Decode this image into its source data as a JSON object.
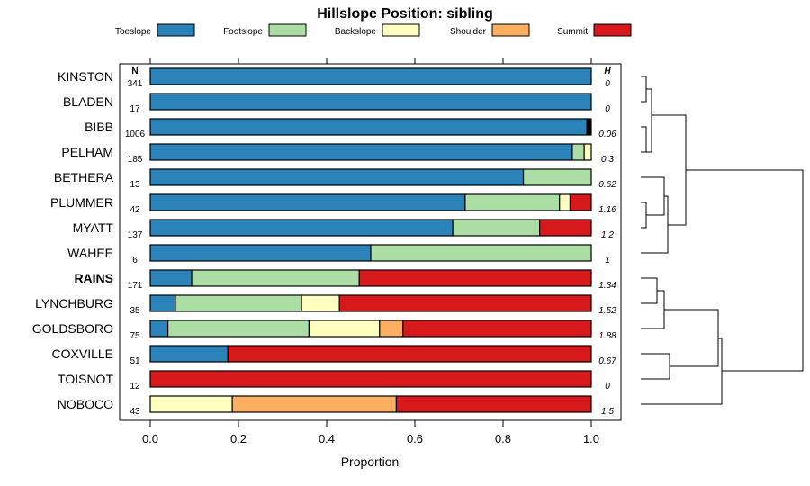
{
  "chart_data": {
    "type": "bar",
    "title": "Hillslope Position: sibling",
    "xlabel": "Proportion",
    "xlim": [
      0,
      1
    ],
    "xticks": [
      "0.0",
      "0.2",
      "0.4",
      "0.6",
      "0.8",
      "1.0"
    ],
    "n_header": "N",
    "h_header": "H",
    "categories": [
      "KINSTON",
      "BLADEN",
      "BIBB",
      "PELHAM",
      "BETHERA",
      "PLUMMER",
      "MYATT",
      "WAHEE",
      "RAINS",
      "LYNCHBURG",
      "GOLDSBORO",
      "COXVILLE",
      "TOISNOT",
      "NOBOCO"
    ],
    "highlighted": "RAINS",
    "n": [
      "341",
      "17",
      "1006",
      "185",
      "13",
      "42",
      "137",
      "6",
      "171",
      "35",
      "75",
      "51",
      "12",
      "43"
    ],
    "h": [
      "0",
      "0",
      "0.06",
      "0.3",
      "0.62",
      "1.16",
      "1.2",
      "1",
      "1.34",
      "1.52",
      "1.88",
      "0.67",
      "0",
      "1.5"
    ],
    "series": [
      {
        "name": "Toeslope",
        "color": "#2b83ba",
        "values": [
          1.0,
          1.0,
          0.99,
          0.957,
          0.846,
          0.714,
          0.686,
          0.5,
          0.094,
          0.057,
          0.04,
          0.176,
          0.0,
          0.0
        ]
      },
      {
        "name": "Footslope",
        "color": "#abdda4",
        "values": [
          0.0,
          0.0,
          0.0,
          0.027,
          0.154,
          0.214,
          0.197,
          0.5,
          0.38,
          0.286,
          0.32,
          0.0,
          0.0,
          0.0
        ]
      },
      {
        "name": "Backslope",
        "color": "#ffffbf",
        "values": [
          0.0,
          0.0,
          0.0,
          0.016,
          0.0,
          0.024,
          0.0,
          0.0,
          0.0,
          0.086,
          0.16,
          0.0,
          0.0,
          0.186
        ]
      },
      {
        "name": "Shoulder",
        "color": "#fdae61",
        "values": [
          0.0,
          0.0,
          0.0,
          0.0,
          0.0,
          0.0,
          0.0,
          0.0,
          0.0,
          0.0,
          0.053,
          0.0,
          0.0,
          0.372
        ]
      },
      {
        "name": "Summit",
        "color": "#d7191c",
        "values": [
          0.0,
          0.0,
          0.0,
          0.0,
          0.0,
          0.048,
          0.117,
          0.0,
          0.526,
          0.571,
          0.427,
          0.824,
          1.0,
          0.442
        ]
      }
    ],
    "extra_segment": {
      "row": "BIBB",
      "value": 0.01,
      "color": "#000000"
    },
    "legend_position": "top",
    "dendrogram": "right"
  }
}
